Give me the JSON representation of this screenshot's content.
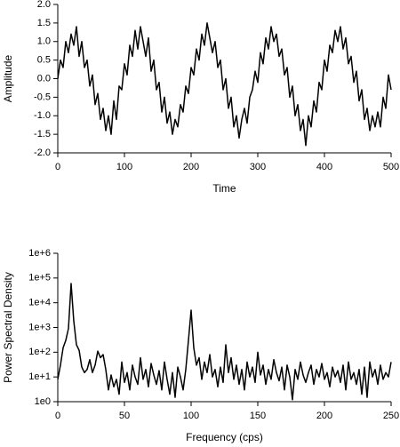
{
  "chart_data": [
    {
      "type": "line",
      "xlabel": "Time",
      "ylabel": "Amplitude",
      "x": [
        0,
        4,
        8,
        12,
        16,
        20,
        24,
        28,
        32,
        36,
        40,
        44,
        48,
        52,
        56,
        60,
        64,
        68,
        72,
        76,
        80,
        84,
        88,
        92,
        96,
        100,
        104,
        108,
        112,
        116,
        120,
        124,
        128,
        132,
        136,
        140,
        144,
        148,
        152,
        156,
        160,
        164,
        168,
        172,
        176,
        180,
        184,
        188,
        192,
        196,
        200,
        204,
        208,
        212,
        216,
        220,
        224,
        228,
        232,
        236,
        240,
        244,
        248,
        252,
        256,
        260,
        264,
        268,
        272,
        276,
        280,
        284,
        288,
        292,
        296,
        300,
        304,
        308,
        312,
        316,
        320,
        324,
        328,
        332,
        336,
        340,
        344,
        348,
        352,
        356,
        360,
        364,
        368,
        372,
        376,
        380,
        384,
        388,
        392,
        396,
        400,
        404,
        408,
        412,
        416,
        420,
        424,
        428,
        432,
        436,
        440,
        444,
        448,
        452,
        456,
        460,
        464,
        468,
        472,
        476,
        480,
        484,
        488,
        492,
        496,
        500
      ],
      "series": [
        {
          "color": "#000000",
          "values": [
            0.0,
            0.5,
            0.3,
            1.0,
            0.7,
            1.2,
            0.9,
            1.4,
            0.6,
            1.0,
            0.3,
            0.5,
            -0.2,
            0.1,
            -0.7,
            -0.4,
            -1.1,
            -0.8,
            -1.4,
            -1.0,
            -1.5,
            -0.6,
            -1.1,
            -0.2,
            -0.3,
            0.4,
            0.1,
            0.9,
            0.6,
            1.3,
            0.8,
            1.4,
            1.0,
            0.6,
            1.1,
            0.2,
            0.5,
            -0.3,
            -0.1,
            -0.9,
            -0.5,
            -1.2,
            -0.9,
            -1.5,
            -1.1,
            -1.3,
            -0.7,
            -0.9,
            -0.2,
            -0.4,
            0.3,
            0.1,
            0.8,
            0.5,
            1.2,
            0.9,
            1.5,
            1.1,
            0.7,
            1.0,
            0.3,
            0.5,
            -0.3,
            0.0,
            -0.8,
            -0.5,
            -1.3,
            -1.0,
            -1.6,
            -1.1,
            -0.8,
            -1.2,
            -0.5,
            -0.3,
            0.2,
            -0.1,
            0.7,
            0.4,
            1.1,
            0.8,
            1.4,
            1.0,
            1.2,
            0.6,
            0.8,
            0.1,
            0.3,
            -0.5,
            -0.2,
            -1.0,
            -0.7,
            -1.4,
            -1.1,
            -1.8,
            -1.0,
            -1.3,
            -0.6,
            -0.9,
            -0.1,
            -0.3,
            0.5,
            0.2,
            0.9,
            0.7,
            1.3,
            1.0,
            1.4,
            0.8,
            1.1,
            0.4,
            0.6,
            -0.1,
            0.2,
            -0.6,
            -0.3,
            -1.1,
            -0.8,
            -1.4,
            -1.0,
            -1.3,
            -0.9,
            -1.3,
            -0.5,
            -0.8,
            0.1,
            -0.3
          ]
        }
      ],
      "xlim": [
        0,
        500
      ],
      "xticks": [
        0,
        100,
        200,
        300,
        400,
        500
      ],
      "ylim": [
        -2,
        2
      ],
      "yticks": [
        {
          "value": -2,
          "label": "-2.0"
        },
        {
          "value": -1.5,
          "label": "-1.5"
        },
        {
          "value": -1,
          "label": "-1.0"
        },
        {
          "value": -0.5,
          "label": "-0.5"
        },
        {
          "value": 0,
          "label": "0.0"
        },
        {
          "value": 0.5,
          "label": "0.5"
        },
        {
          "value": 1,
          "label": "1.0"
        },
        {
          "value": 1.5,
          "label": "1.5"
        },
        {
          "value": 2,
          "label": "2.0"
        }
      ]
    },
    {
      "type": "line",
      "xlabel": "Frequency (cps)",
      "ylabel": "Power Spectral Density",
      "yscale": "log",
      "x": [
        0,
        2,
        4,
        6,
        8,
        10,
        12,
        14,
        16,
        18,
        20,
        22,
        24,
        26,
        28,
        30,
        32,
        34,
        36,
        38,
        40,
        42,
        44,
        46,
        48,
        50,
        52,
        54,
        56,
        58,
        60,
        62,
        64,
        66,
        68,
        70,
        72,
        74,
        76,
        78,
        80,
        82,
        84,
        86,
        88,
        90,
        92,
        94,
        96,
        98,
        100,
        102,
        104,
        106,
        108,
        110,
        112,
        114,
        116,
        118,
        120,
        122,
        124,
        126,
        128,
        130,
        132,
        134,
        136,
        138,
        140,
        142,
        144,
        146,
        148,
        150,
        152,
        154,
        156,
        158,
        160,
        162,
        164,
        166,
        168,
        170,
        172,
        174,
        176,
        178,
        180,
        182,
        184,
        186,
        188,
        190,
        192,
        194,
        196,
        198,
        200,
        202,
        204,
        206,
        208,
        210,
        212,
        214,
        216,
        218,
        220,
        222,
        224,
        226,
        228,
        230,
        232,
        234,
        236,
        238,
        240,
        242,
        244,
        246,
        248,
        250
      ],
      "series": [
        {
          "color": "#000000",
          "values": [
            8,
            30,
            150,
            300,
            900,
            60000,
            1800,
            200,
            120,
            25,
            15,
            20,
            50,
            15,
            30,
            110,
            60,
            80,
            20,
            3,
            12,
            4,
            8,
            2,
            40,
            6,
            15,
            3,
            30,
            10,
            5,
            60,
            8,
            20,
            4,
            35,
            12,
            5,
            18,
            3,
            40,
            8,
            2,
            15,
            1.5,
            25,
            10,
            3,
            20,
            300,
            5000,
            150,
            30,
            60,
            8,
            40,
            15,
            80,
            10,
            20,
            4,
            25,
            6,
            200,
            15,
            60,
            8,
            30,
            5,
            20,
            3,
            40,
            10,
            25,
            6,
            100,
            12,
            30,
            5,
            20,
            8,
            50,
            15,
            7,
            25,
            3,
            30,
            10,
            1.2,
            20,
            8,
            40,
            12,
            6,
            15,
            30,
            5,
            20,
            10,
            35,
            8,
            15,
            4,
            25,
            10,
            18,
            6,
            30,
            3,
            40,
            8,
            15,
            5,
            20,
            2,
            25,
            1.5,
            40,
            10,
            20,
            5,
            30,
            8,
            15,
            10,
            40
          ]
        }
      ],
      "xlim": [
        0,
        250
      ],
      "xticks": [
        0,
        50,
        100,
        150,
        200,
        250
      ],
      "ylim": [
        1,
        1000000
      ],
      "yticks": [
        {
          "value": 1,
          "label": "1e0"
        },
        {
          "value": 10,
          "label": "1e+1"
        },
        {
          "value": 100,
          "label": "1e+2"
        },
        {
          "value": 1000,
          "label": "1e+3"
        },
        {
          "value": 10000,
          "label": "1e+4"
        },
        {
          "value": 100000,
          "label": "1e+5"
        },
        {
          "value": 1000000,
          "label": "1e+6"
        }
      ]
    }
  ]
}
